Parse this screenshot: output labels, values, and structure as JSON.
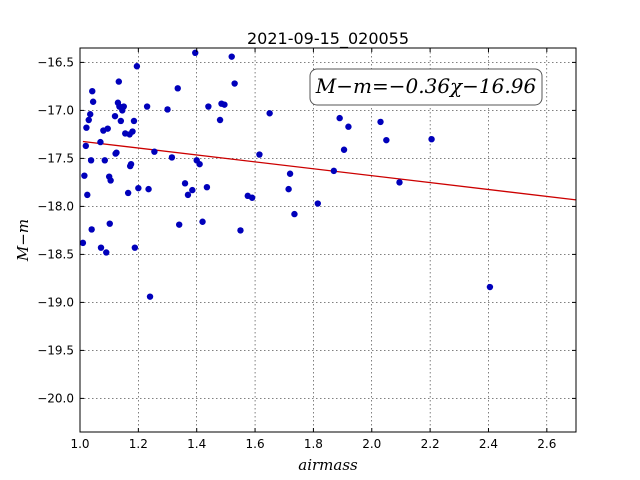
{
  "chart_data": {
    "type": "scatter",
    "title": "2021-09-15_020055",
    "xlabel": "airmass",
    "ylabel": "M−m",
    "xlim": [
      1.0,
      2.7
    ],
    "ylim": [
      -20.35,
      -16.35
    ],
    "y_inverted": true,
    "x_ticks": [
      1.0,
      1.2,
      1.4,
      1.6,
      1.8,
      2.0,
      2.2,
      2.4,
      2.6
    ],
    "x_tick_labels": [
      "1.0",
      "1.2",
      "1.4",
      "1.6",
      "1.8",
      "2.0",
      "2.2",
      "2.4",
      "2.6"
    ],
    "y_ticks": [
      -16.5,
      -17.0,
      -17.5,
      -18.0,
      -18.5,
      -19.0,
      -19.5,
      -20.0
    ],
    "y_tick_labels": [
      "−16.5",
      "−17.0",
      "−17.5",
      "−18.0",
      "−18.5",
      "−19.0",
      "−19.5",
      "−20.0"
    ],
    "grid": true,
    "annotation": "M−m=−0.36χ−16.96",
    "fit": {
      "slope": -0.36,
      "intercept": -16.96,
      "color": "#cc0000"
    },
    "marker_color": "#0000bb",
    "points": [
      [
        1.01,
        -18.38
      ],
      [
        1.015,
        -17.68
      ],
      [
        1.02,
        -17.37
      ],
      [
        1.022,
        -17.18
      ],
      [
        1.025,
        -17.88
      ],
      [
        1.03,
        -17.1
      ],
      [
        1.035,
        -17.04
      ],
      [
        1.038,
        -17.52
      ],
      [
        1.04,
        -18.24
      ],
      [
        1.042,
        -16.8
      ],
      [
        1.045,
        -16.91
      ],
      [
        1.07,
        -17.33
      ],
      [
        1.072,
        -18.43
      ],
      [
        1.08,
        -17.21
      ],
      [
        1.085,
        -17.52
      ],
      [
        1.09,
        -18.48
      ],
      [
        1.095,
        -17.19
      ],
      [
        1.1,
        -17.69
      ],
      [
        1.102,
        -18.18
      ],
      [
        1.105,
        -17.73
      ],
      [
        1.12,
        -17.06
      ],
      [
        1.122,
        -17.45
      ],
      [
        1.125,
        -17.44
      ],
      [
        1.13,
        -16.92
      ],
      [
        1.133,
        -16.7
      ],
      [
        1.135,
        -16.96
      ],
      [
        1.14,
        -17.11
      ],
      [
        1.145,
        -17.0
      ],
      [
        1.15,
        -16.96
      ],
      [
        1.155,
        -17.24
      ],
      [
        1.165,
        -17.86
      ],
      [
        1.17,
        -17.25
      ],
      [
        1.172,
        -17.58
      ],
      [
        1.175,
        -17.56
      ],
      [
        1.18,
        -17.22
      ],
      [
        1.185,
        -17.11
      ],
      [
        1.188,
        -18.43
      ],
      [
        1.195,
        -16.54
      ],
      [
        1.2,
        -17.81
      ],
      [
        1.23,
        -16.96
      ],
      [
        1.235,
        -17.82
      ],
      [
        1.24,
        -18.94
      ],
      [
        1.255,
        -17.43
      ],
      [
        1.3,
        -16.99
      ],
      [
        1.315,
        -17.49
      ],
      [
        1.335,
        -16.77
      ],
      [
        1.34,
        -18.19
      ],
      [
        1.36,
        -17.76
      ],
      [
        1.37,
        -17.88
      ],
      [
        1.385,
        -17.83
      ],
      [
        1.395,
        -16.4
      ],
      [
        1.4,
        -17.52
      ],
      [
        1.41,
        -17.56
      ],
      [
        1.42,
        -18.16
      ],
      [
        1.435,
        -17.8
      ],
      [
        1.44,
        -16.96
      ],
      [
        1.48,
        -17.1
      ],
      [
        1.485,
        -16.93
      ],
      [
        1.495,
        -16.94
      ],
      [
        1.52,
        -16.44
      ],
      [
        1.53,
        -16.72
      ],
      [
        1.55,
        -18.25
      ],
      [
        1.575,
        -17.89
      ],
      [
        1.59,
        -17.91
      ],
      [
        1.615,
        -17.46
      ],
      [
        1.65,
        -17.03
      ],
      [
        1.715,
        -17.82
      ],
      [
        1.72,
        -17.66
      ],
      [
        1.735,
        -18.08
      ],
      [
        1.815,
        -17.97
      ],
      [
        1.87,
        -17.63
      ],
      [
        1.89,
        -17.08
      ],
      [
        1.905,
        -17.41
      ],
      [
        1.92,
        -17.17
      ],
      [
        2.03,
        -17.12
      ],
      [
        2.05,
        -17.31
      ],
      [
        2.095,
        -17.75
      ],
      [
        2.205,
        -17.3
      ],
      [
        2.405,
        -18.84
      ]
    ]
  }
}
